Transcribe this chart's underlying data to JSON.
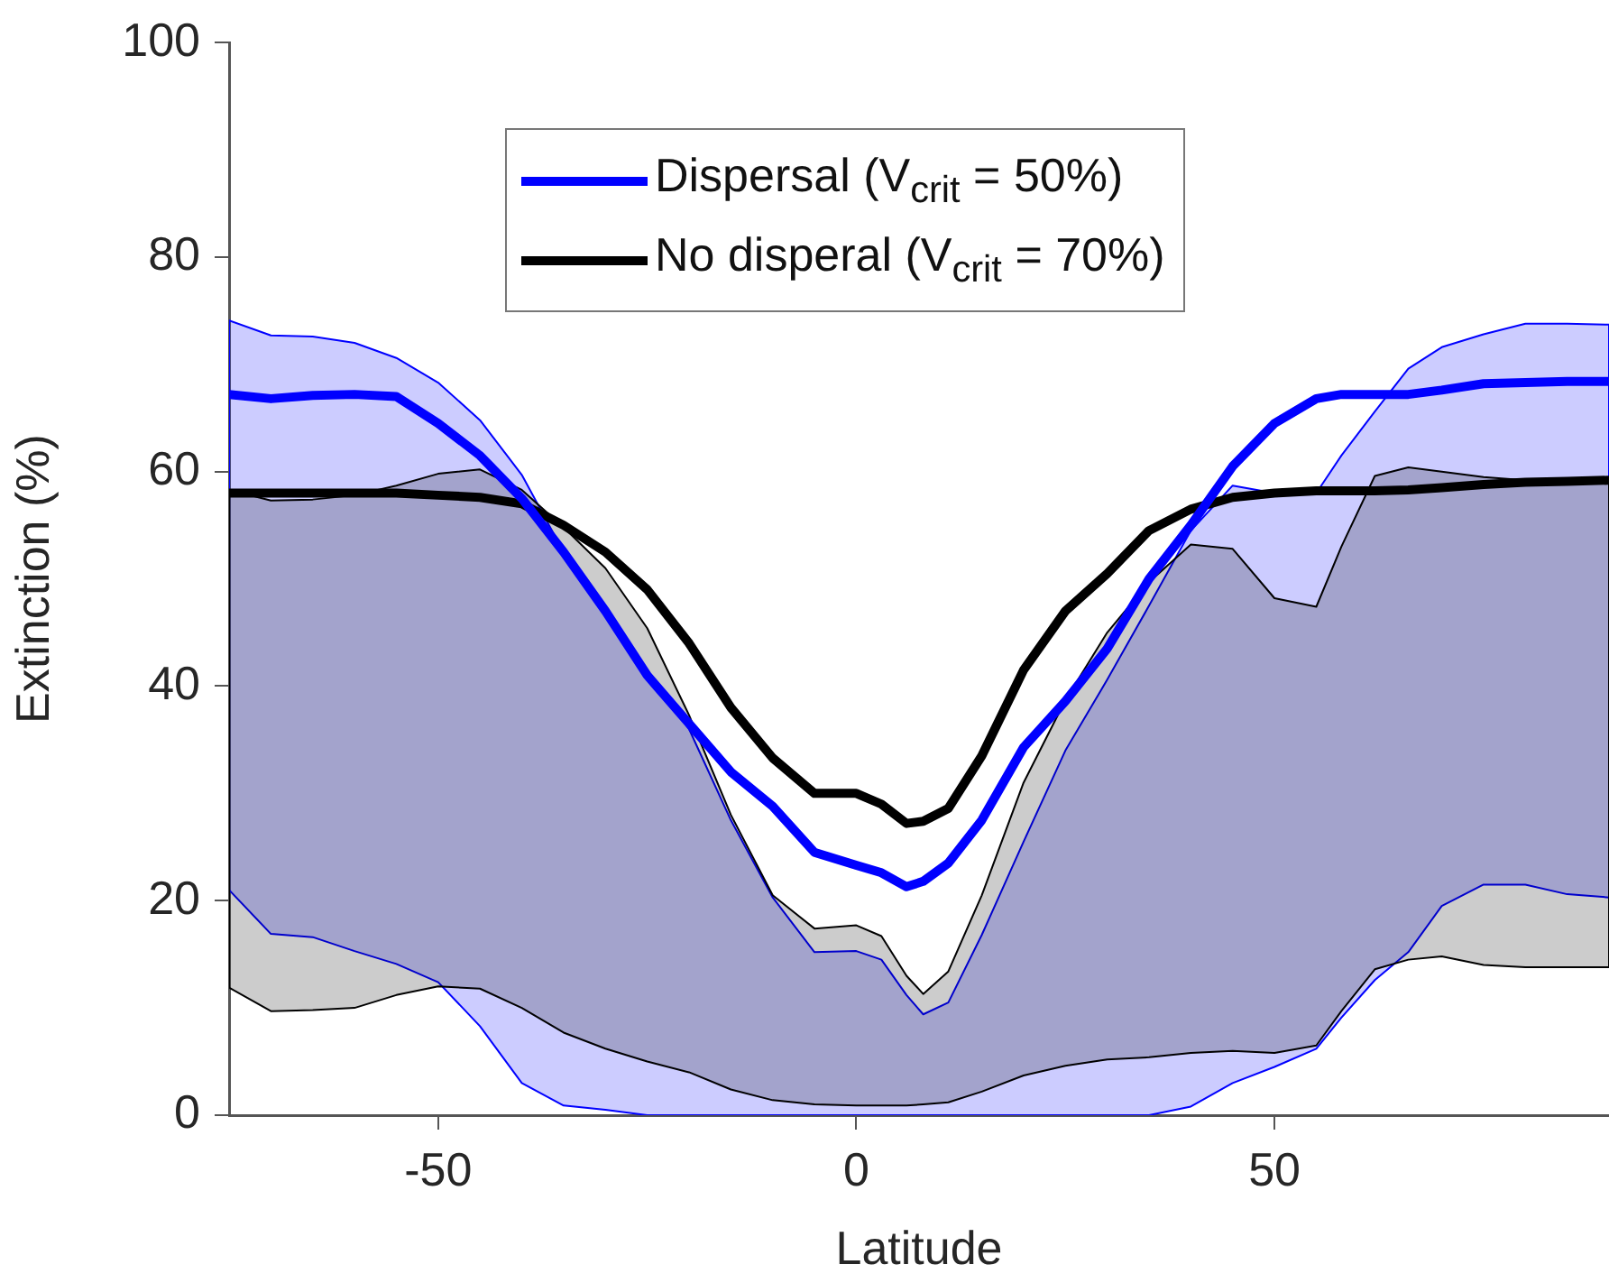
{
  "chart_data": {
    "type": "line",
    "xlabel": "Latitude",
    "ylabel": "Extinction (%)",
    "xlim": [
      -75,
      90
    ],
    "xticks": [
      -50,
      0,
      50
    ],
    "ylim": [
      0,
      100
    ],
    "yticks": [
      0,
      20,
      40,
      60,
      80,
      100
    ],
    "grid": false,
    "legend": "top",
    "marker": "none",
    "line_style": "solid",
    "x": [
      -75,
      -70,
      -65,
      -60,
      -55,
      -50,
      -45,
      -40,
      -35,
      -30,
      -25,
      -20,
      -15,
      -10,
      -5,
      0,
      3,
      6,
      8,
      11,
      15,
      20,
      25,
      30,
      35,
      40,
      45,
      50,
      55,
      58,
      62,
      66,
      70,
      75,
      80,
      85,
      90
    ],
    "series": [
      {
        "name": "Dispersal (V$_{crit}$ = 50%)",
        "color": "#0000ff",
        "values": [
          67.2,
          66.8,
          67.1,
          67.2,
          67.0,
          64.5,
          61.5,
          57.5,
          52.5,
          47,
          41,
          36.5,
          32,
          28.8,
          24.5,
          23.3,
          22.6,
          21.3,
          21.8,
          23.5,
          27.5,
          34.3,
          38.6,
          43.5,
          50,
          55,
          60.5,
          64.5,
          66.8,
          67.2,
          67.2,
          67.2,
          67.6,
          68.2,
          68.3,
          68.4,
          68.4
        ],
        "lower": [
          21,
          16.9,
          16.6,
          15.3,
          14.1,
          12.4,
          8.3,
          3,
          0.9,
          0.5,
          0,
          0,
          0,
          0,
          0,
          0,
          0,
          0,
          0,
          0,
          0,
          0,
          0,
          0,
          0,
          0.8,
          3,
          4.5,
          6.2,
          9.1,
          12.6,
          15.2,
          19.5,
          21.5,
          21.5,
          20.6,
          20.3
        ],
        "upper": [
          74.1,
          72.7,
          72.6,
          72,
          70.6,
          68.3,
          64.8,
          59.7,
          52.5,
          47.2,
          41.5,
          36,
          27.5,
          20.3,
          15.2,
          15.3,
          14.5,
          11.2,
          9.4,
          10.5,
          16.8,
          25.5,
          34,
          40.6,
          47.5,
          54.5,
          58.7,
          58,
          58,
          61.5,
          65.6,
          69.6,
          71.6,
          72.8,
          73.8,
          73.8,
          73.7
        ]
      },
      {
        "name": "No disperal (V$_{crit}$ = 70%)",
        "color": "#000000",
        "values": [
          58,
          58,
          58,
          58,
          58,
          57.8,
          57.6,
          57,
          55,
          52.5,
          49,
          44,
          38,
          33.3,
          30,
          30,
          29,
          27.2,
          27.4,
          28.6,
          33.5,
          41.5,
          47,
          50.5,
          54.5,
          56.5,
          57.6,
          58,
          58.2,
          58.2,
          58.2,
          58.3,
          58.5,
          58.8,
          59,
          59.1,
          59.2
        ],
        "lower": [
          11.9,
          9.7,
          9.8,
          10,
          11.2,
          12,
          11.8,
          10,
          7.7,
          6.2,
          5,
          4,
          2.4,
          1.4,
          1,
          0.9,
          0.9,
          0.9,
          1,
          1.2,
          2.2,
          3.7,
          4.6,
          5.2,
          5.4,
          5.8,
          6,
          5.8,
          6.5,
          9.7,
          13.6,
          14.5,
          14.8,
          14,
          13.8,
          13.8,
          13.8
        ],
        "upper": [
          58.3,
          57.3,
          57.4,
          57.8,
          58.7,
          59.8,
          60.2,
          58.3,
          54.8,
          51,
          45.4,
          37.3,
          28,
          20.5,
          17.4,
          17.7,
          16.7,
          13,
          11.3,
          13.4,
          20.5,
          31,
          38.7,
          45,
          49.7,
          53.2,
          52.8,
          48.2,
          47.4,
          53,
          59.6,
          60.4,
          60,
          59.5,
          59.2,
          59.2,
          59.2
        ]
      }
    ]
  }
}
